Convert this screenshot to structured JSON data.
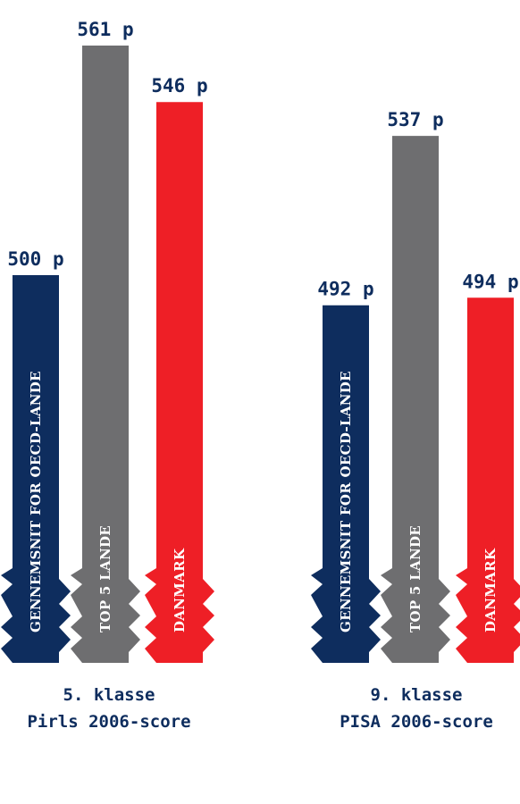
{
  "colors": {
    "oecd": "#0e2d5e",
    "top5": "#6e6e70",
    "denmark": "#ee1f26",
    "text": "#0e2d5e"
  },
  "chart_data": {
    "type": "bar",
    "unit_suffix": " p",
    "groups": [
      {
        "label_line1": "5. klasse",
        "label_line2": "Pirls 2006-score",
        "bars": [
          {
            "category": "GENNEMSNIT FOR OECD-LANDE",
            "value": 500,
            "label": "500 p",
            "color_key": "oecd"
          },
          {
            "category": "TOP 5 LANDE",
            "value": 561,
            "label": "561 p",
            "color_key": "top5"
          },
          {
            "category": "DANMARK",
            "value": 546,
            "label": "546 p",
            "color_key": "denmark"
          }
        ]
      },
      {
        "label_line1": "9. klasse",
        "label_line2": "PISA 2006-score",
        "bars": [
          {
            "category": "GENNEMSNIT FOR OECD-LANDE",
            "value": 492,
            "label": "492 p",
            "color_key": "oecd"
          },
          {
            "category": "TOP 5 LANDE",
            "value": 537,
            "label": "537 p",
            "color_key": "top5"
          },
          {
            "category": "DANMARK",
            "value": 494,
            "label": "494 p",
            "color_key": "denmark"
          }
        ]
      }
    ]
  }
}
